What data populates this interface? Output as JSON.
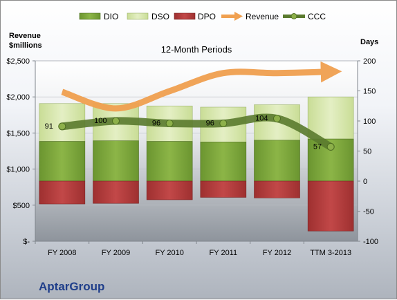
{
  "company": "AptarGroup",
  "chart_data": {
    "type": "bar",
    "title": "12-Month Periods",
    "categories": [
      "FY 2008",
      "FY 2009",
      "FY 2010",
      "FY 2011",
      "FY 2012",
      "TTM 3-2013"
    ],
    "left_axis": {
      "label_line1": "Revenue",
      "label_line2": "$millions",
      "range": [
        0,
        2500
      ],
      "ticks": [
        {
          "v": 0,
          "t": "$-"
        },
        {
          "v": 500,
          "t": "$500"
        },
        {
          "v": 1000,
          "t": "$1,000"
        },
        {
          "v": 1500,
          "t": "$1,500"
        },
        {
          "v": 2000,
          "t": "$2,000"
        },
        {
          "v": 2500,
          "t": "$2,500"
        }
      ]
    },
    "right_axis": {
      "label": "Days",
      "range": [
        -100,
        200
      ],
      "ticks": [
        -100,
        -50,
        0,
        50,
        100,
        150,
        200
      ]
    },
    "legend": {
      "position": "top",
      "entries": [
        {
          "name": "DIO",
          "color": "#7aa23a"
        },
        {
          "name": "DSO",
          "color": "#d7e8ad"
        },
        {
          "name": "DPO",
          "color": "#b23a3a"
        },
        {
          "name": "Revenue",
          "color": "#f0a050"
        },
        {
          "name": "CCC",
          "color": "#5a7a2e"
        }
      ]
    },
    "series": [
      {
        "name": "DIO",
        "axis": "right",
        "values": [
          66,
          67,
          66,
          65,
          68,
          70
        ]
      },
      {
        "name": "DSO",
        "axis": "right",
        "values": [
          63,
          62,
          59,
          58,
          59,
          70
        ]
      },
      {
        "name": "DPO",
        "axis": "right",
        "values": [
          -38,
          -37,
          -31,
          -27,
          -28,
          -83
        ]
      },
      {
        "name": "Revenue",
        "axis": "left",
        "values": [
          2070,
          1840,
          2080,
          2330,
          2330,
          2350
        ]
      },
      {
        "name": "CCC",
        "axis": "right",
        "values": [
          91,
          100,
          96,
          96,
          104,
          57
        ],
        "labels": [
          "91",
          "100",
          "96",
          "96",
          "104",
          "57"
        ]
      }
    ]
  }
}
